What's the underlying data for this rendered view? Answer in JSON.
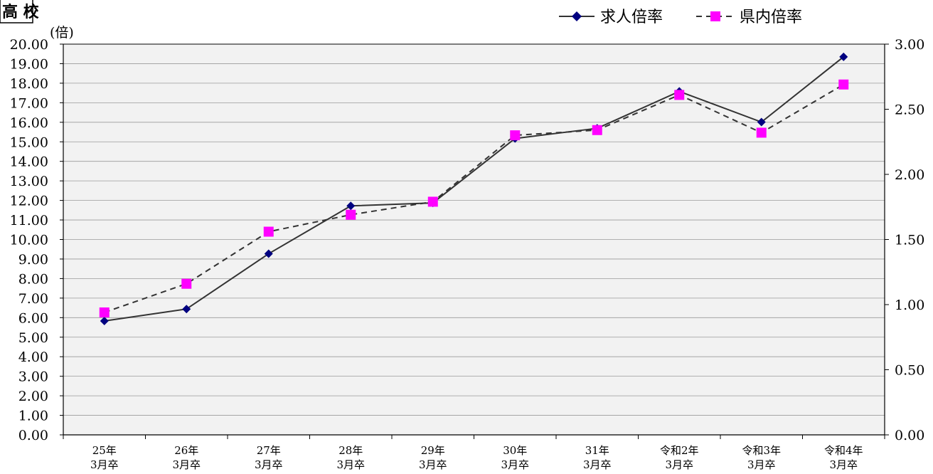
{
  "corner_label": "高 校",
  "chart_data": {
    "type": "line",
    "categories": [
      [
        "25年",
        "3月卒"
      ],
      [
        "26年",
        "3月卒"
      ],
      [
        "27年",
        "3月卒"
      ],
      [
        "28年",
        "3月卒"
      ],
      [
        "29年",
        "3月卒"
      ],
      [
        "30年",
        "3月卒"
      ],
      [
        "31年",
        "3月卒"
      ],
      [
        "令和2年",
        "3月卒"
      ],
      [
        "令和3年",
        "3月卒"
      ],
      [
        "令和4年",
        "3月卒"
      ]
    ],
    "y_unit": "(倍)",
    "ylim": [
      0,
      20
    ],
    "ytick_step": 1,
    "yticks_left": [
      "0.00",
      "1.00",
      "2.00",
      "3.00",
      "4.00",
      "5.00",
      "6.00",
      "7.00",
      "8.00",
      "9.00",
      "10.00",
      "11.00",
      "12.00",
      "13.00",
      "14.00",
      "15.00",
      "16.00",
      "17.00",
      "18.00",
      "19.00",
      "20.00"
    ],
    "y2lim": [
      0,
      3
    ],
    "yticks_right": [
      "0.00",
      "0.50",
      "1.00",
      "1.50",
      "2.00",
      "2.50",
      "3.00"
    ],
    "grid": true,
    "legend_position": "top-right",
    "series": [
      {
        "name": "求人倍率",
        "axis": "left",
        "color": "#000080",
        "line_color": "#333333",
        "style": "solid",
        "marker": "diamond",
        "values": [
          5.83,
          6.44,
          9.27,
          11.72,
          11.87,
          15.17,
          15.69,
          17.58,
          16.01,
          19.35
        ]
      },
      {
        "name": "県内倍率",
        "axis": "right",
        "color": "#FF00FF",
        "line_color": "#333333",
        "style": "dashed",
        "marker": "square",
        "values": [
          0.94,
          1.16,
          1.56,
          1.69,
          1.79,
          2.3,
          2.34,
          2.61,
          2.32,
          2.69
        ]
      }
    ]
  }
}
